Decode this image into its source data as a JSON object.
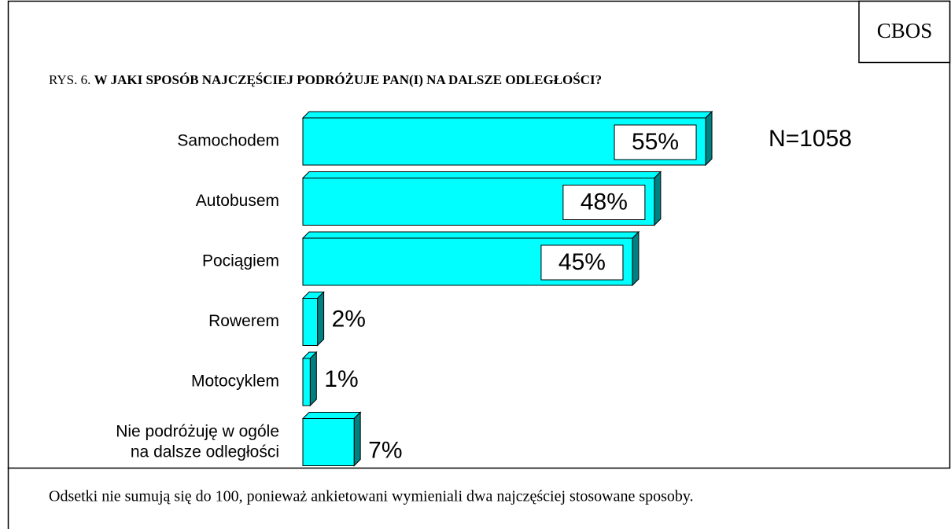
{
  "chart_data": {
    "type": "bar",
    "orientation": "horizontal",
    "source": "CBOS",
    "title_prefix": "RYS. 6.",
    "title": "W JAKI SPOSÓB NAJCZĘŚCIEJ PODRÓŻUJE PAN(I) NA DALSZE ODLEGŁOŚCI?",
    "annotation": "N=1058",
    "categories": [
      "Samochodem",
      "Autobusem",
      "Pociągiem",
      "Rowerem",
      "Motocyklem",
      "Nie podróżuję w ogóle\nna dalsze odległości"
    ],
    "values": [
      55,
      48,
      45,
      2,
      1,
      7
    ],
    "value_labels": [
      "55%",
      "48%",
      "45%",
      "2%",
      "1%",
      "7%"
    ],
    "color": "#00ffff",
    "side_color": "#008080",
    "note": "Odsetki nie sumują się do 100, ponieważ ankietowani wymieniali dwa najczęściej stosowane sposoby."
  }
}
